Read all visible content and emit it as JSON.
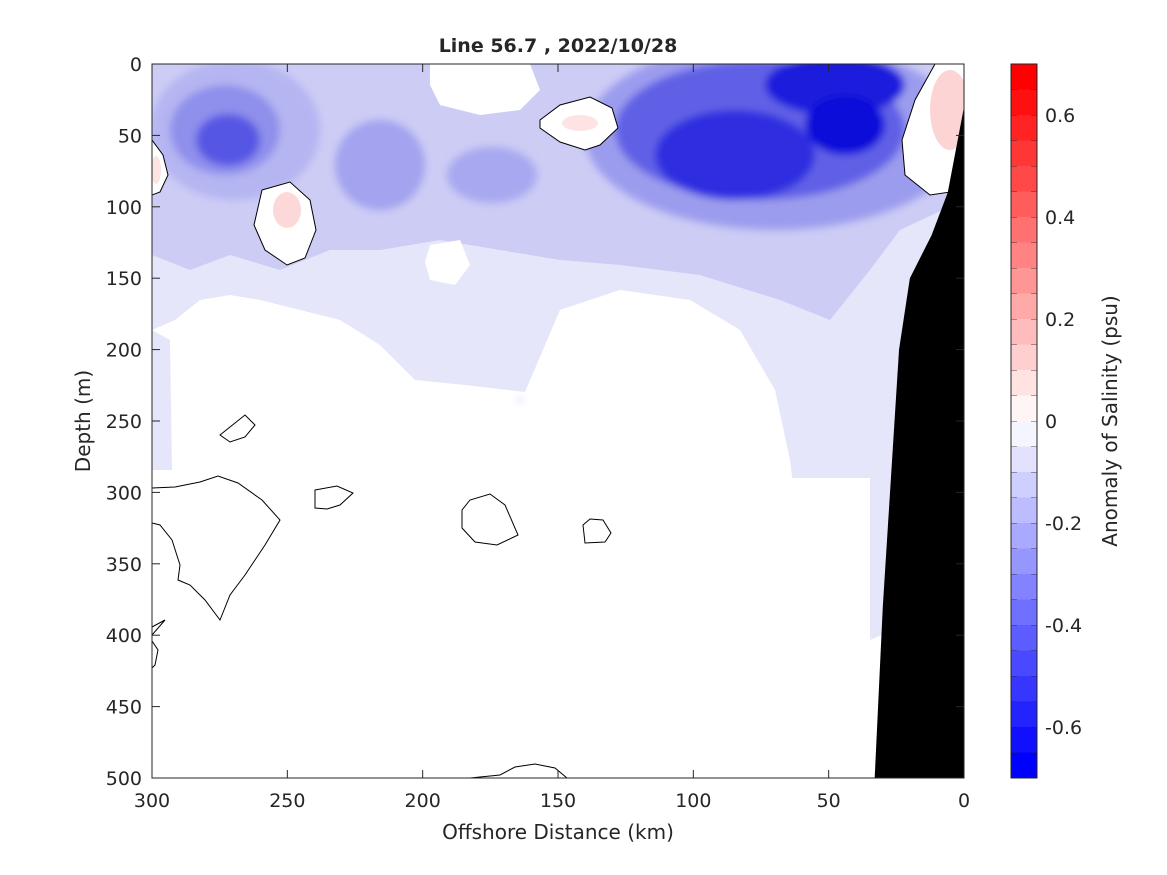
{
  "chart_data": {
    "type": "heatmap",
    "title": "Line 56.7 , 2022/10/28",
    "xlabel": "Offshore Distance (km)",
    "ylabel": "Depth (m)",
    "xlim": [
      300,
      0
    ],
    "ylim": [
      500,
      0
    ],
    "x_ticks": [
      "300",
      "250",
      "200",
      "150",
      "100",
      "50",
      "0"
    ],
    "x_tick_values": [
      300,
      250,
      200,
      150,
      100,
      50,
      0
    ],
    "y_ticks": [
      "0",
      "50",
      "100",
      "150",
      "200",
      "250",
      "300",
      "350",
      "400",
      "450",
      "500"
    ],
    "y_tick_values": [
      0,
      50,
      100,
      150,
      200,
      250,
      300,
      350,
      400,
      450,
      500
    ],
    "colorbar": {
      "label": "Anomaly of Salinity (psu)",
      "range": [
        -0.7,
        0.7
      ],
      "ticks": [
        "0.6",
        "0.4",
        "0.2",
        "0",
        "-0.2",
        "-0.4",
        "-0.6"
      ],
      "tick_values": [
        0.6,
        0.4,
        0.2,
        0,
        -0.2,
        -0.4,
        -0.6
      ],
      "levels": 28,
      "negative_color": "#0000ff",
      "positive_color": "#ff0000",
      "zero_color": "#ffffff"
    },
    "grid": false,
    "contour_zero_line_color": "#000000",
    "bathymetry_color": "#000000",
    "anomaly_features": [
      {
        "x": 272,
        "depth": 45,
        "anomaly": -0.4
      },
      {
        "x": 215,
        "depth": 70,
        "anomaly": -0.3
      },
      {
        "x": 170,
        "depth": 80,
        "anomaly": -0.25
      },
      {
        "x": 88,
        "depth": 75,
        "anomaly": -0.55
      },
      {
        "x": 50,
        "depth": 20,
        "anomaly": -0.65
      },
      {
        "x": 40,
        "depth": 50,
        "anomaly": -0.6
      },
      {
        "x": 140,
        "depth": 40,
        "anomaly": 0.1
      },
      {
        "x": 250,
        "depth": 100,
        "anomaly": 0.1
      },
      {
        "x": 7,
        "depth": 40,
        "anomaly": 0.15
      },
      {
        "x": 298,
        "depth": 70,
        "anomaly": 0.05
      }
    ],
    "seafloor_profile": [
      {
        "x": 33,
        "depth": 500
      },
      {
        "x": 30,
        "depth": 380
      },
      {
        "x": 24,
        "depth": 200
      },
      {
        "x": 20,
        "depth": 150
      },
      {
        "x": 12,
        "depth": 120
      },
      {
        "x": 6,
        "depth": 90
      },
      {
        "x": 1,
        "depth": 40
      },
      {
        "x": 0,
        "depth": 30
      }
    ]
  }
}
